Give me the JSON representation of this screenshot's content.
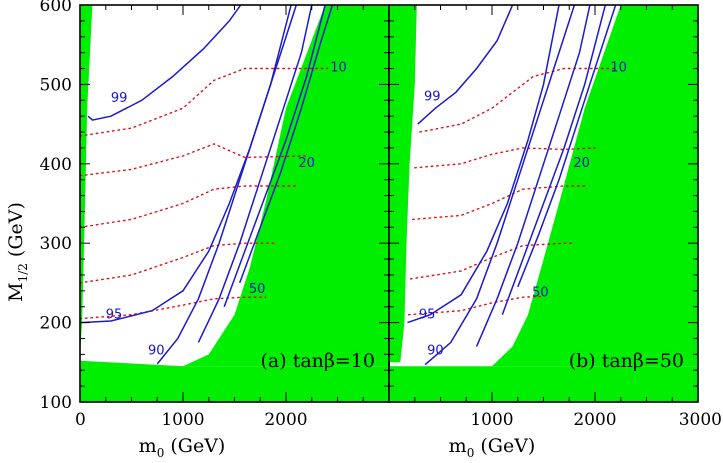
{
  "chart_data": {
    "type": "line",
    "shared_axes": {
      "ylabel_main": "M",
      "ylabel_sub": "1/2",
      "ylabel_unit": "(GeV)",
      "xlabel_main": "m",
      "xlabel_sub": "0",
      "xlabel_unit": "(GeV)",
      "ylim": [
        100,
        600
      ],
      "yticks": [
        "100",
        "200",
        "300",
        "400",
        "500",
        "600"
      ]
    },
    "colors": {
      "excluded": "#00ee00",
      "solid_contour": "#1a1ad0",
      "dotted_contour": "#e01010",
      "label": "#1515d0"
    },
    "panels": [
      {
        "id": "a",
        "label": "(a) tanβ=10",
        "xlim": [
          0,
          3000
        ],
        "xticks": [
          "0",
          "1000",
          "2000"
        ],
        "excluded_regions": [
          {
            "name": "left-strip",
            "polygon": [
              [
                0,
                600
              ],
              [
                120,
                600
              ],
              [
                70,
                470
              ],
              [
                40,
                300
              ],
              [
                20,
                200
              ],
              [
                0,
                160
              ]
            ]
          },
          {
            "name": "bottom",
            "polygon": [
              [
                0,
                100
              ],
              [
                3000,
                100
              ],
              [
                3000,
                145
              ],
              [
                1000,
                145
              ],
              [
                0,
                152
              ]
            ]
          },
          {
            "name": "right",
            "polygon": [
              [
                3000,
                100
              ],
              [
                3000,
                600
              ],
              [
                2380,
                600
              ],
              [
                2000,
                470
              ],
              [
                1800,
                350
              ],
              [
                1650,
                270
              ],
              [
                1500,
                210
              ],
              [
                1250,
                160
              ],
              [
                1000,
                145
              ],
              [
                3000,
                145
              ]
            ]
          }
        ],
        "solid_contours": [
          {
            "label": "99",
            "points": [
              [
                80,
                460
              ],
              [
                120,
                455
              ],
              [
                300,
                460
              ],
              [
                600,
                480
              ],
              [
                900,
                510
              ],
              [
                1200,
                545
              ],
              [
                1450,
                580
              ],
              [
                1560,
                600
              ]
            ]
          },
          {
            "label": "95",
            "points": [
              [
                0,
                200
              ],
              [
                300,
                202
              ],
              [
                700,
                215
              ],
              [
                1000,
                240
              ],
              [
                1250,
                290
              ],
              [
                1450,
                350
              ],
              [
                1650,
                420
              ],
              [
                1850,
                500
              ],
              [
                2050,
                600
              ]
            ]
          },
          {
            "label": "90",
            "points": [
              [
                750,
                148
              ],
              [
                950,
                180
              ],
              [
                1150,
                230
              ],
              [
                1350,
                300
              ],
              [
                1550,
                380
              ],
              [
                1750,
                460
              ],
              [
                1950,
                540
              ],
              [
                2100,
                600
              ]
            ]
          },
          {
            "label": "50",
            "points": [
              [
                1150,
                175
              ],
              [
                1350,
                230
              ],
              [
                1550,
                300
              ],
              [
                1750,
                380
              ],
              [
                1950,
                460
              ],
              [
                2150,
                540
              ],
              [
                2250,
                600
              ]
            ]
          },
          {
            "label": "20",
            "points": [
              [
                1400,
                220
              ],
              [
                1600,
                290
              ],
              [
                1800,
                360
              ],
              [
                2000,
                430
              ],
              [
                2200,
                510
              ],
              [
                2380,
                600
              ]
            ]
          },
          {
            "label": "10",
            "points": [
              [
                1550,
                250
              ],
              [
                1750,
                320
              ],
              [
                1950,
                390
              ],
              [
                2150,
                470
              ],
              [
                2330,
                550
              ],
              [
                2450,
                600
              ]
            ]
          }
        ],
        "dotted_contours": [
          {
            "points": [
              [
                0,
                435
              ],
              [
                500,
                445
              ],
              [
                1000,
                470
              ],
              [
                1300,
                505
              ],
              [
                1600,
                520
              ],
              [
                2400,
                520
              ]
            ]
          },
          {
            "points": [
              [
                0,
                385
              ],
              [
                500,
                393
              ],
              [
                1000,
                410
              ],
              [
                1300,
                425
              ],
              [
                1600,
                408
              ],
              [
                2200,
                410
              ]
            ]
          },
          {
            "points": [
              [
                0,
                320
              ],
              [
                500,
                330
              ],
              [
                1000,
                350
              ],
              [
                1300,
                368
              ],
              [
                1600,
                372
              ],
              [
                2100,
                372
              ]
            ]
          },
          {
            "points": [
              [
                0,
                250
              ],
              [
                500,
                260
              ],
              [
                1000,
                282
              ],
              [
                1300,
                297
              ],
              [
                1600,
                300
              ],
              [
                1900,
                300
              ]
            ]
          },
          {
            "points": [
              [
                0,
                205
              ],
              [
                500,
                210
              ],
              [
                1000,
                222
              ],
              [
                1300,
                230
              ],
              [
                1600,
                232
              ],
              [
                1800,
                232
              ]
            ]
          }
        ],
        "label_positions": {
          "99": [
            380,
            478
          ],
          "95": [
            330,
            205
          ],
          "90": [
            740,
            160
          ],
          "50": [
            1720,
            237
          ],
          "20": [
            2200,
            396
          ],
          "10": [
            2510,
            516
          ]
        }
      },
      {
        "id": "b",
        "label": "(b) tanβ=50",
        "xlim": [
          0,
          3000
        ],
        "xticks": [
          "1000",
          "2000",
          "3000"
        ],
        "excluded_regions": [
          {
            "name": "left-strip",
            "polygon": [
              [
                0,
                600
              ],
              [
                270,
                600
              ],
              [
                250,
                500
              ],
              [
                200,
                400
              ],
              [
                170,
                300
              ],
              [
                150,
                200
              ],
              [
                110,
                150
              ],
              [
                0,
                150
              ]
            ]
          },
          {
            "name": "bottom",
            "polygon": [
              [
                0,
                100
              ],
              [
                3000,
                100
              ],
              [
                3000,
                145
              ],
              [
                0,
                145
              ]
            ]
          },
          {
            "name": "right",
            "polygon": [
              [
                3000,
                100
              ],
              [
                3000,
                600
              ],
              [
                2250,
                600
              ],
              [
                1900,
                470
              ],
              [
                1650,
                350
              ],
              [
                1480,
                270
              ],
              [
                1350,
                210
              ],
              [
                1200,
                170
              ],
              [
                1000,
                145
              ],
              [
                3000,
                145
              ]
            ]
          }
        ],
        "solid_contours": [
          {
            "label": "99",
            "points": [
              [
                280,
                450
              ],
              [
                450,
                470
              ],
              [
                650,
                490
              ],
              [
                850,
                520
              ],
              [
                1050,
                555
              ],
              [
                1200,
                600
              ]
            ]
          },
          {
            "label": "95",
            "points": [
              [
                180,
                200
              ],
              [
                400,
                210
              ],
              [
                700,
                235
              ],
              [
                950,
                290
              ],
              [
                1150,
                350
              ],
              [
                1350,
                430
              ],
              [
                1500,
                500
              ],
              [
                1650,
                600
              ]
            ]
          },
          {
            "label": "90",
            "points": [
              [
                350,
                147
              ],
              [
                600,
                175
              ],
              [
                850,
                230
              ],
              [
                1050,
                300
              ],
              [
                1250,
                380
              ],
              [
                1450,
                460
              ],
              [
                1650,
                540
              ],
              [
                1800,
                600
              ]
            ]
          },
          {
            "label": "50",
            "points": [
              [
                850,
                170
              ],
              [
                1050,
                230
              ],
              [
                1250,
                300
              ],
              [
                1450,
                380
              ],
              [
                1650,
                460
              ],
              [
                1850,
                540
              ],
              [
                1950,
                600
              ]
            ]
          },
          {
            "label": "20",
            "points": [
              [
                1100,
                210
              ],
              [
                1300,
                280
              ],
              [
                1500,
                350
              ],
              [
                1700,
                420
              ],
              [
                1900,
                500
              ],
              [
                2100,
                600
              ]
            ]
          },
          {
            "label": "10",
            "points": [
              [
                1250,
                245
              ],
              [
                1450,
                310
              ],
              [
                1650,
                380
              ],
              [
                1850,
                460
              ],
              [
                2050,
                540
              ],
              [
                2200,
                600
              ]
            ]
          }
        ],
        "dotted_contours": [
          {
            "points": [
              [
                300,
                440
              ],
              [
                700,
                450
              ],
              [
                1000,
                470
              ],
              [
                1400,
                510
              ],
              [
                1700,
                520
              ],
              [
                2200,
                520
              ]
            ]
          },
          {
            "points": [
              [
                250,
                395
              ],
              [
                700,
                400
              ],
              [
                1000,
                412
              ],
              [
                1300,
                420
              ],
              [
                1700,
                418
              ],
              [
                2000,
                420
              ]
            ]
          },
          {
            "points": [
              [
                230,
                330
              ],
              [
                700,
                335
              ],
              [
                1000,
                350
              ],
              [
                1300,
                368
              ],
              [
                1700,
                372
              ],
              [
                1900,
                372
              ]
            ]
          },
          {
            "points": [
              [
                210,
                255
              ],
              [
                700,
                265
              ],
              [
                1000,
                282
              ],
              [
                1300,
                297
              ],
              [
                1700,
                300
              ],
              [
                1800,
                300
              ]
            ]
          },
          {
            "points": [
              [
                190,
                210
              ],
              [
                700,
                215
              ],
              [
                1000,
                225
              ],
              [
                1300,
                232
              ],
              [
                1500,
                233
              ]
            ]
          }
        ],
        "label_positions": {
          "99": [
            420,
            480
          ],
          "95": [
            370,
            205
          ],
          "90": [
            450,
            160
          ],
          "50": [
            1470,
            233
          ],
          "20": [
            1870,
            396
          ],
          "10": [
            2230,
            516
          ]
        }
      }
    ]
  }
}
